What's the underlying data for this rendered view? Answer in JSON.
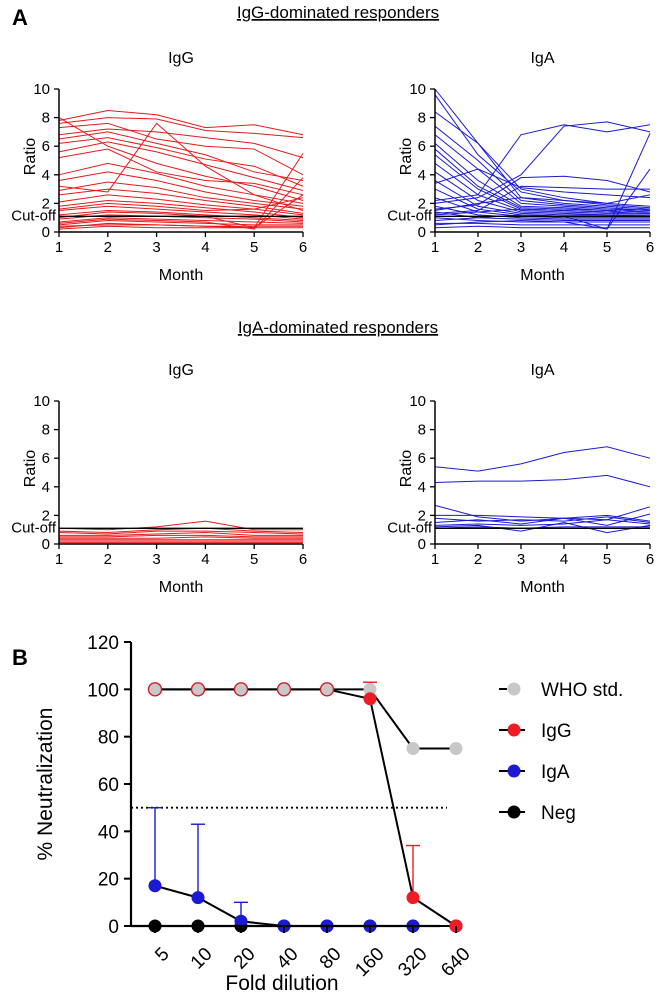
{
  "panel_labels": {
    "a": "A",
    "b": "B"
  },
  "colors": {
    "igg": "#e8191a",
    "iga": "#1a1ad4",
    "who": "#c8c8c8",
    "neg": "#000000",
    "igg_marker": "#ee1c24"
  },
  "chart_data": [
    {
      "id": "a_igg_dom_igg",
      "type": "line",
      "group_title": "IgG-dominated responders",
      "title": "IgG",
      "xlabel": "Month",
      "ylabel": "Ratio",
      "x": [
        1,
        2,
        3,
        4,
        5,
        6
      ],
      "xlim": [
        1,
        6
      ],
      "ylim": [
        0,
        10
      ],
      "yticks": [
        0,
        2,
        4,
        6,
        8,
        10
      ],
      "cutoff": 1.1,
      "cutoff_label": "Cut-off",
      "color": "#e8191a",
      "series": [
        [
          7.8,
          8.5,
          8.2,
          7.3,
          7.5,
          6.8
        ],
        [
          7.6,
          8.0,
          7.9,
          7.1,
          6.9,
          6.6
        ],
        [
          7.3,
          7.6,
          6.5,
          6.0,
          5.8,
          4.0
        ],
        [
          6.8,
          7.2,
          7.0,
          6.6,
          6.2,
          5.2
        ],
        [
          6.5,
          7.0,
          6.2,
          5.4,
          4.2,
          3.6
        ],
        [
          6.2,
          6.6,
          5.9,
          5.1,
          4.6,
          3.2
        ],
        [
          5.6,
          6.3,
          5.6,
          4.7,
          3.8,
          2.9
        ],
        [
          5.2,
          5.8,
          4.2,
          3.6,
          3.4,
          2.6
        ],
        [
          8.0,
          6.0,
          4.8,
          3.9,
          3.2,
          2.2
        ],
        [
          4.0,
          4.8,
          4.1,
          3.2,
          2.6,
          2.0
        ],
        [
          3.6,
          4.2,
          3.6,
          2.8,
          2.2,
          1.8
        ],
        [
          2.9,
          3.5,
          3.1,
          2.4,
          2.0,
          1.6
        ],
        [
          2.6,
          3.0,
          2.7,
          2.2,
          1.8,
          1.3
        ],
        [
          2.1,
          2.6,
          2.3,
          1.9,
          1.6,
          1.2
        ],
        [
          1.8,
          2.2,
          2.0,
          1.7,
          1.4,
          1.0
        ],
        [
          1.5,
          1.8,
          1.6,
          1.4,
          1.2,
          0.9
        ],
        [
          1.2,
          1.5,
          1.4,
          1.2,
          1.0,
          0.8
        ],
        [
          0.9,
          1.2,
          1.1,
          1.0,
          0.9,
          0.7
        ],
        [
          0.7,
          1.0,
          0.9,
          0.8,
          0.7,
          0.6
        ],
        [
          0.5,
          0.8,
          0.7,
          0.6,
          0.5,
          0.5
        ],
        [
          0.3,
          0.6,
          0.5,
          0.4,
          0.4,
          0.4
        ],
        [
          0.2,
          0.4,
          0.3,
          0.3,
          0.3,
          0.3
        ],
        [
          1.0,
          1.4,
          1.3,
          1.1,
          0.3,
          5.5
        ],
        [
          0.6,
          0.9,
          0.8,
          0.7,
          0.2,
          3.8
        ],
        [
          0.4,
          0.5,
          0.5,
          0.4,
          0.3,
          2.6
        ],
        [
          3.2,
          2.8,
          7.6,
          4.6,
          2.6,
          1.5
        ],
        [
          1.6,
          2.0,
          1.8,
          1.5,
          1.6,
          2.4
        ]
      ]
    },
    {
      "id": "a_igg_dom_iga",
      "type": "line",
      "group_title": "",
      "title": "IgA",
      "xlabel": "Month",
      "ylabel": "Ratio",
      "x": [
        1,
        2,
        3,
        4,
        5,
        6
      ],
      "xlim": [
        1,
        6
      ],
      "ylim": [
        0,
        10
      ],
      "yticks": [
        0,
        2,
        4,
        6,
        8,
        10
      ],
      "cutoff": 1.1,
      "cutoff_label": "Cut-off",
      "color": "#1a1ad4",
      "series": [
        [
          10.0,
          6.2,
          3.0,
          2.4,
          2.0,
          1.8
        ],
        [
          9.6,
          5.4,
          2.8,
          2.2,
          1.9,
          1.7
        ],
        [
          8.4,
          6.2,
          2.4,
          2.0,
          1.8,
          1.6
        ],
        [
          7.4,
          5.0,
          2.2,
          1.9,
          1.7,
          1.5
        ],
        [
          6.8,
          4.4,
          2.0,
          1.8,
          1.6,
          1.5
        ],
        [
          6.2,
          3.6,
          1.8,
          1.7,
          1.5,
          1.4
        ],
        [
          5.8,
          3.2,
          1.7,
          1.6,
          1.5,
          1.4
        ],
        [
          5.4,
          3.0,
          1.6,
          1.5,
          1.4,
          1.3
        ],
        [
          4.8,
          2.6,
          1.5,
          1.4,
          1.3,
          1.3
        ],
        [
          4.2,
          2.2,
          1.4,
          1.3,
          1.2,
          1.2
        ],
        [
          3.6,
          1.8,
          1.3,
          1.2,
          1.2,
          1.1
        ],
        [
          3.0,
          1.6,
          1.2,
          1.1,
          1.1,
          1.1
        ],
        [
          2.4,
          1.4,
          1.1,
          1.0,
          1.0,
          1.0
        ],
        [
          1.8,
          1.2,
          1.0,
          0.9,
          0.9,
          0.9
        ],
        [
          1.4,
          1.0,
          0.9,
          0.8,
          0.8,
          0.8
        ],
        [
          1.0,
          0.8,
          0.7,
          0.7,
          0.7,
          0.7
        ],
        [
          0.6,
          0.6,
          0.5,
          0.5,
          0.5,
          0.5
        ],
        [
          0.3,
          0.4,
          0.3,
          0.3,
          0.3,
          0.3
        ],
        [
          2.2,
          2.6,
          6.8,
          7.5,
          7.0,
          7.5
        ],
        [
          2.0,
          2.4,
          4.0,
          7.4,
          7.7,
          7.0
        ],
        [
          1.6,
          1.9,
          3.8,
          3.9,
          3.6,
          2.8
        ],
        [
          1.3,
          1.5,
          3.2,
          3.1,
          3.0,
          3.0
        ],
        [
          3.4,
          4.4,
          3.1,
          2.8,
          2.6,
          2.4
        ],
        [
          0.8,
          1.0,
          1.2,
          1.1,
          0.2,
          6.9
        ],
        [
          0.5,
          0.7,
          0.8,
          0.7,
          0.2,
          4.4
        ],
        [
          1.5,
          2.0,
          2.4,
          2.2,
          2.0,
          2.6
        ],
        [
          1.2,
          1.4,
          1.6,
          1.5,
          1.4,
          1.6
        ]
      ]
    },
    {
      "id": "a_iga_dom_igg",
      "type": "line",
      "group_title": "IgA-dominated responders",
      "title": "IgG",
      "xlabel": "Month",
      "ylabel": "Ratio",
      "x": [
        1,
        2,
        3,
        4,
        5,
        6
      ],
      "xlim": [
        1,
        6
      ],
      "ylim": [
        0,
        10
      ],
      "yticks": [
        0,
        2,
        4,
        6,
        8,
        10
      ],
      "cutoff": 1.1,
      "cutoff_label": "Cut-off",
      "color": "#e8191a",
      "series": [
        [
          1.1,
          1.0,
          1.2,
          1.6,
          1.0,
          1.0
        ],
        [
          0.9,
          0.8,
          1.0,
          1.1,
          0.9,
          0.8
        ],
        [
          0.8,
          0.7,
          0.9,
          0.9,
          0.8,
          0.7
        ],
        [
          0.6,
          0.6,
          0.7,
          0.8,
          0.6,
          0.6
        ],
        [
          0.5,
          0.5,
          0.6,
          0.6,
          0.5,
          0.5
        ],
        [
          0.4,
          0.4,
          0.4,
          0.5,
          0.4,
          0.4
        ],
        [
          0.3,
          0.3,
          0.3,
          0.3,
          0.3,
          0.3
        ],
        [
          0.2,
          0.2,
          0.2,
          0.2,
          0.2,
          0.2
        ],
        [
          0.1,
          0.1,
          0.1,
          0.1,
          0.1,
          0.1
        ]
      ]
    },
    {
      "id": "a_iga_dom_iga",
      "type": "line",
      "group_title": "",
      "title": "IgA",
      "xlabel": "Month",
      "ylabel": "Ratio",
      "x": [
        1,
        2,
        3,
        4,
        5,
        6
      ],
      "xlim": [
        1,
        6
      ],
      "ylim": [
        0,
        10
      ],
      "yticks": [
        0,
        2,
        4,
        6,
        8,
        10
      ],
      "cutoff": 1.1,
      "cutoff_label": "Cut-off",
      "color": "#1a1ad4",
      "series": [
        [
          5.4,
          5.1,
          5.6,
          6.4,
          6.8,
          6.0
        ],
        [
          4.3,
          4.4,
          4.4,
          4.5,
          4.8,
          4.0
        ],
        [
          2.7,
          1.9,
          1.6,
          1.8,
          1.7,
          2.6
        ],
        [
          2.0,
          2.0,
          1.9,
          1.8,
          2.0,
          1.6
        ],
        [
          1.8,
          1.6,
          1.7,
          1.6,
          1.9,
          1.5
        ],
        [
          1.5,
          1.7,
          1.4,
          1.8,
          1.3,
          2.1
        ],
        [
          1.3,
          1.4,
          1.3,
          1.4,
          1.7,
          1.4
        ],
        [
          1.2,
          1.3,
          0.9,
          1.5,
          0.8,
          1.3
        ],
        [
          1.1,
          1.2,
          1.1,
          1.2,
          1.2,
          1.2
        ]
      ]
    },
    {
      "id": "b_neutralization",
      "type": "line",
      "xlabel": "Fold dilution",
      "ylabel": "% Neutralization",
      "categories": [
        "5",
        "10",
        "20",
        "40",
        "80",
        "160",
        "320",
        "640"
      ],
      "ylim": [
        0,
        120
      ],
      "yticks": [
        0,
        20,
        40,
        60,
        80,
        100,
        120
      ],
      "threshold": 50,
      "series": [
        {
          "name": "WHO std.",
          "color": "#c8c8c8",
          "dashed": true,
          "values": [
            100,
            100,
            100,
            100,
            100,
            100,
            75,
            75
          ]
        },
        {
          "name": "IgG",
          "color": "#ee1c24",
          "values": [
            100,
            100,
            100,
            100,
            100,
            96,
            12,
            0
          ],
          "err": [
            0,
            0,
            0,
            0,
            0,
            7,
            22,
            0
          ]
        },
        {
          "name": "IgA",
          "color": "#1a1ad4",
          "values": [
            17,
            12,
            2,
            0,
            0,
            0,
            0,
            0
          ],
          "err": [
            33,
            31,
            8,
            0,
            0,
            0,
            0,
            0
          ]
        },
        {
          "name": "Neg",
          "color": "#000000",
          "values": [
            0,
            0,
            0,
            0,
            0,
            0,
            0,
            0
          ]
        }
      ]
    }
  ]
}
